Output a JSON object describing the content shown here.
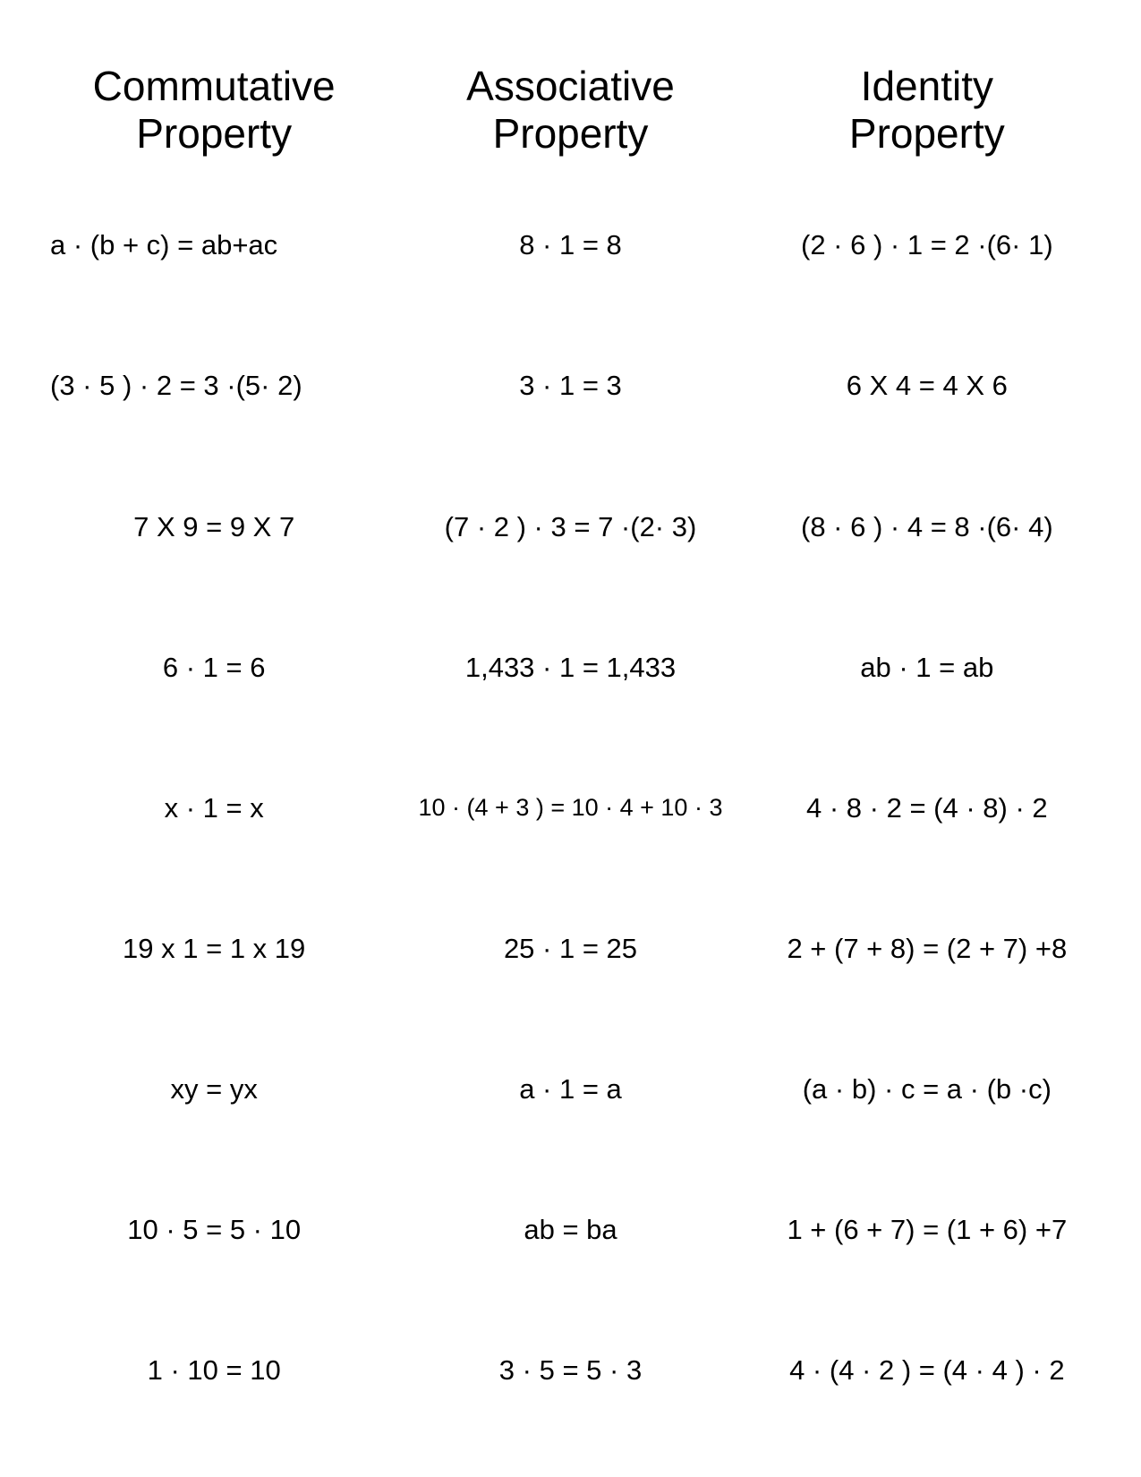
{
  "page": {
    "background_color": "#ffffff",
    "text_color": "#000000",
    "font_family": "Comic Sans MS",
    "header_fontsize_pt": 34,
    "cell_fontsize_pt": 23,
    "small_cell_fontsize_pt": 20,
    "columns": 3,
    "rows": 10
  },
  "headers": [
    "Commutative\nProperty",
    "Associative\nProperty",
    "Identity\nProperty"
  ],
  "cells": [
    {
      "text": "a · (b + c)  = ab+ac",
      "align": "left"
    },
    {
      "text": "8 · 1 = 8"
    },
    {
      "text": "(2 · 6 ) · 1 = 2 ·(6· 1)"
    },
    {
      "text": "(3 · 5 ) · 2 = 3 ·(5· 2)",
      "align": "left"
    },
    {
      "text": "3 · 1 = 3"
    },
    {
      "text": "6 X 4 = 4 X 6"
    },
    {
      "text": "7 X 9 = 9 X 7"
    },
    {
      "text": "(7 · 2 ) · 3 = 7 ·(2· 3)"
    },
    {
      "text": "(8 · 6 ) · 4 = 8 ·(6· 4)"
    },
    {
      "text": "6 · 1 = 6"
    },
    {
      "text": "1,433 · 1 = 1,433"
    },
    {
      "text": "ab · 1 = ab"
    },
    {
      "text": "x · 1 = x"
    },
    {
      "text": "10 · (4 + 3 ) = 10 · 4 + 10 · 3",
      "small": true
    },
    {
      "text": "4 · 8 · 2 = (4 · 8) · 2"
    },
    {
      "text": "19 x 1 = 1 x 19"
    },
    {
      "text": "25 · 1 = 25"
    },
    {
      "text": "2 + (7 + 8) = (2 + 7) +8"
    },
    {
      "text": "xy = yx"
    },
    {
      "text": "a · 1 = a"
    },
    {
      "text": "(a · b) · c = a · (b ·c)"
    },
    {
      "text": "10 · 5 = 5 · 10"
    },
    {
      "text": "ab = ba"
    },
    {
      "text": "1 + (6 + 7) = (1 + 6) +7"
    },
    {
      "text": "1 · 10 = 10"
    },
    {
      "text": "3 · 5 = 5 · 3"
    },
    {
      "text": "4 · (4 · 2 ) = (4 · 4 ) · 2"
    }
  ]
}
